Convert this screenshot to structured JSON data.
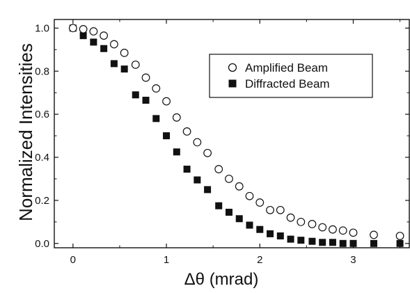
{
  "chart_data": {
    "type": "scatter",
    "xlabel": "Δθ (mrad)",
    "ylabel": "Normalized Intensities",
    "xlim": [
      -0.2,
      3.6
    ],
    "ylim": [
      -0.02,
      1.04
    ],
    "xticks": [
      0,
      1,
      2,
      3
    ],
    "yticks": [
      0.0,
      0.2,
      0.4,
      0.6,
      0.8,
      1.0
    ],
    "ytick_labels": [
      "0.0",
      "0.2",
      "0.4",
      "0.6",
      "0.8",
      "1.0"
    ],
    "xtick_labels": [
      "0",
      "1",
      "2",
      "3"
    ],
    "legend_position": "upper-right",
    "grid": false,
    "series": [
      {
        "name": "Amplified Beam",
        "marker": "open-circle",
        "x": [
          0.0,
          0.11,
          0.22,
          0.33,
          0.44,
          0.55,
          0.67,
          0.78,
          0.89,
          1.0,
          1.11,
          1.22,
          1.33,
          1.44,
          1.56,
          1.67,
          1.78,
          1.89,
          2.0,
          2.11,
          2.22,
          2.33,
          2.44,
          2.56,
          2.67,
          2.78,
          2.89,
          3.0,
          3.22,
          3.5
        ],
        "y": [
          1.0,
          0.995,
          0.985,
          0.965,
          0.925,
          0.885,
          0.83,
          0.77,
          0.72,
          0.66,
          0.585,
          0.52,
          0.47,
          0.42,
          0.345,
          0.3,
          0.265,
          0.22,
          0.19,
          0.155,
          0.155,
          0.12,
          0.1,
          0.09,
          0.075,
          0.065,
          0.06,
          0.05,
          0.04,
          0.035
        ]
      },
      {
        "name": "Diffracted Beam",
        "marker": "filled-square",
        "x": [
          0.0,
          0.11,
          0.22,
          0.33,
          0.44,
          0.55,
          0.67,
          0.78,
          0.89,
          1.0,
          1.11,
          1.22,
          1.33,
          1.44,
          1.56,
          1.67,
          1.78,
          1.89,
          2.0,
          2.11,
          2.22,
          2.33,
          2.44,
          2.56,
          2.67,
          2.78,
          2.89,
          3.0,
          3.22,
          3.5
        ],
        "y": [
          1.0,
          0.965,
          0.935,
          0.905,
          0.835,
          0.81,
          0.69,
          0.665,
          0.58,
          0.5,
          0.425,
          0.345,
          0.295,
          0.25,
          0.175,
          0.145,
          0.115,
          0.085,
          0.065,
          0.045,
          0.035,
          0.02,
          0.015,
          0.01,
          0.005,
          0.005,
          0.0,
          0.0,
          0.0,
          0.0
        ]
      }
    ]
  }
}
